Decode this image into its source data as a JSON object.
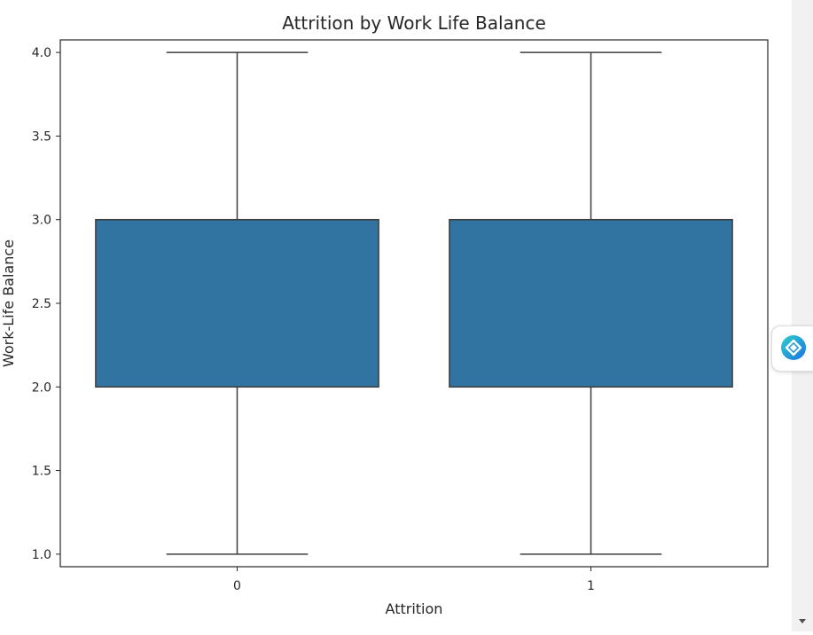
{
  "chart_data": {
    "type": "box",
    "title": "Attrition by Work Life Balance",
    "xlabel": "Attrition",
    "ylabel": "Work-Life Balance",
    "categories": [
      "0",
      "1"
    ],
    "boxes": [
      {
        "category": "0",
        "min": 1.0,
        "q1": 2.0,
        "median": 3.0,
        "q3": 3.0,
        "max": 4.0
      },
      {
        "category": "1",
        "min": 1.0,
        "q1": 2.0,
        "median": 3.0,
        "q3": 3.0,
        "max": 4.0
      }
    ],
    "yticks": [
      1.0,
      1.5,
      2.0,
      2.5,
      3.0,
      3.5,
      4.0
    ],
    "ytick_labels": [
      "1.0",
      "1.5",
      "2.0",
      "2.5",
      "3.0",
      "3.5",
      "4.0"
    ],
    "ylim": [
      0.925,
      4.075
    ],
    "box_color": "#3274a1",
    "line_color": "#3d3d3d",
    "grid": false,
    "legend": "none"
  },
  "ui": {
    "widget_icon": "assistant-diamond-icon",
    "scroll_icon": "chevron-down-icon"
  }
}
